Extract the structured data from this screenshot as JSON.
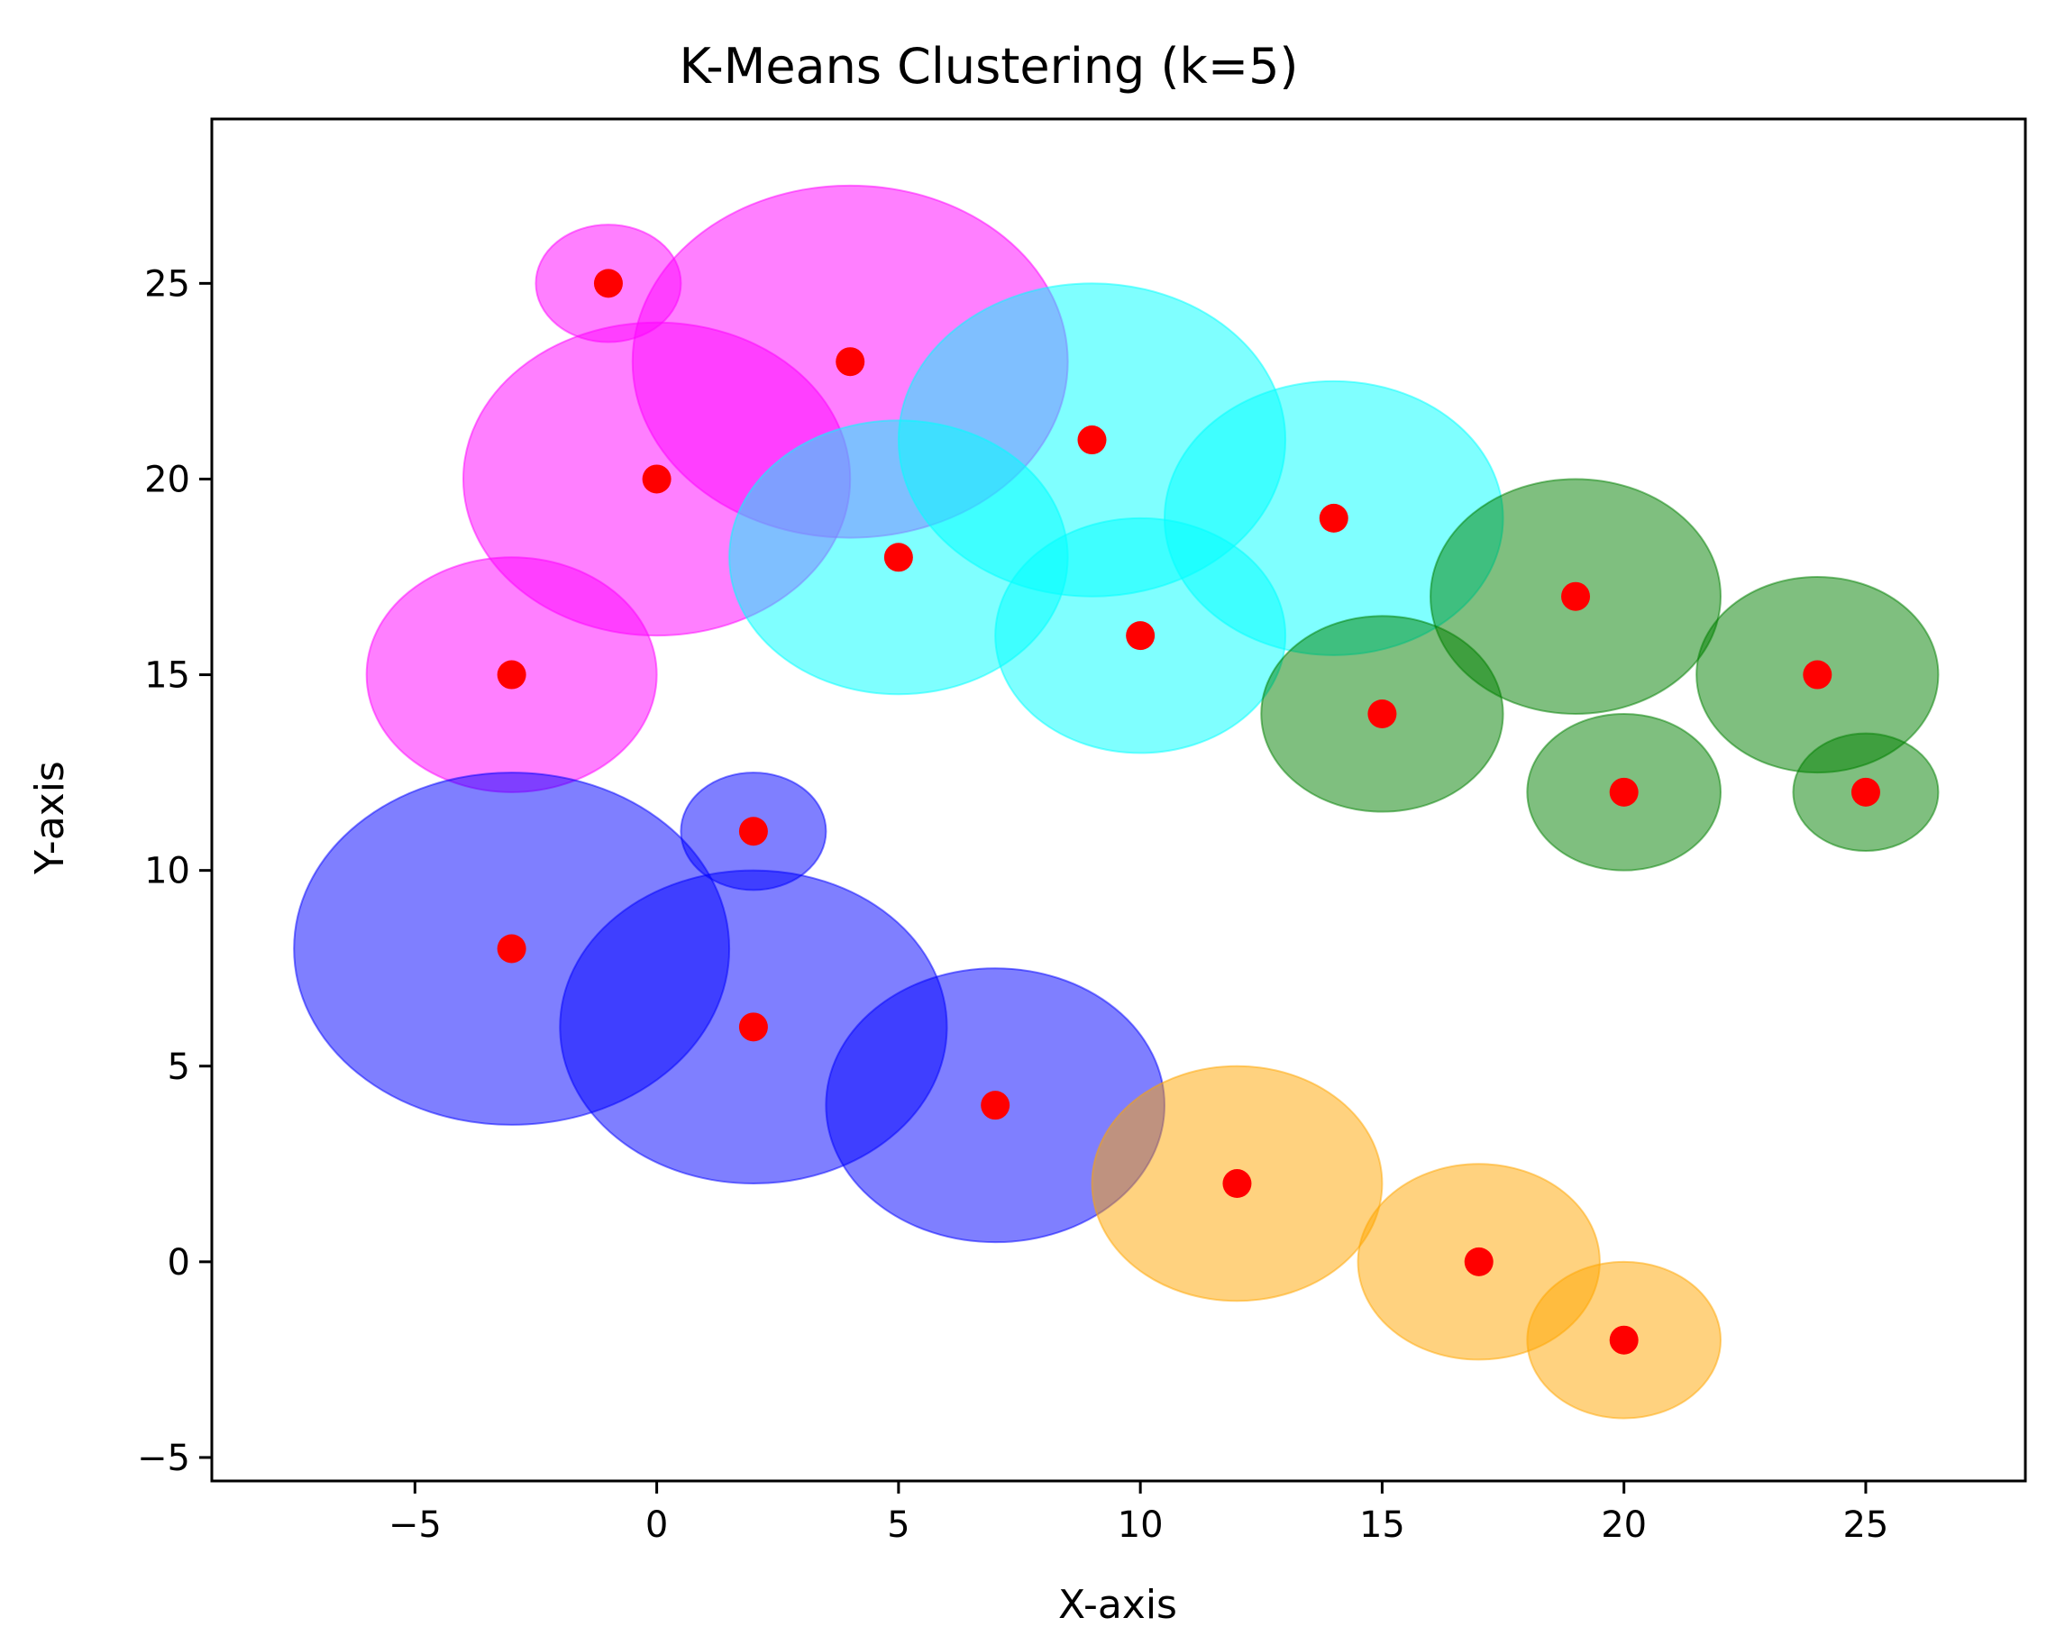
{
  "chart_data": {
    "type": "scatter",
    "title": "K-Means Clustering (k=5)",
    "xlabel": "X-axis",
    "ylabel": "Y-axis",
    "xlim": [
      -9.2,
      28.3
    ],
    "ylim": [
      -5.6,
      29.2
    ],
    "xticks": [
      -5,
      0,
      5,
      10,
      15,
      20,
      25
    ],
    "yticks": [
      -5,
      0,
      5,
      10,
      15,
      20,
      25
    ],
    "xtick_labels": [
      "−5",
      "0",
      "5",
      "10",
      "15",
      "20",
      "25"
    ],
    "ytick_labels": [
      "−5",
      "0",
      "5",
      "10",
      "15",
      "20",
      "25"
    ],
    "grid": false,
    "point_color": "#ff0000",
    "series": [
      {
        "name": "cluster-magenta",
        "color": "#ff00ff",
        "points": [
          {
            "x": -1,
            "y": 25,
            "w": 3.0,
            "h": 3.0
          },
          {
            "x": 4,
            "y": 23,
            "w": 9.0,
            "h": 9.0
          },
          {
            "x": 0,
            "y": 20,
            "w": 8.0,
            "h": 8.0
          },
          {
            "x": -3,
            "y": 15,
            "w": 6.0,
            "h": 6.0
          }
        ]
      },
      {
        "name": "cluster-cyan",
        "color": "#00ffff",
        "points": [
          {
            "x": 9,
            "y": 21,
            "w": 8.0,
            "h": 8.0
          },
          {
            "x": 14,
            "y": 19,
            "w": 7.0,
            "h": 7.0
          },
          {
            "x": 5,
            "y": 18,
            "w": 7.0,
            "h": 7.0
          },
          {
            "x": 10,
            "y": 16,
            "w": 6.0,
            "h": 6.0
          }
        ]
      },
      {
        "name": "cluster-green",
        "color": "#008000",
        "points": [
          {
            "x": 19,
            "y": 17,
            "w": 6.0,
            "h": 6.0
          },
          {
            "x": 24,
            "y": 15,
            "w": 5.0,
            "h": 5.0
          },
          {
            "x": 15,
            "y": 14,
            "w": 5.0,
            "h": 5.0
          },
          {
            "x": 20,
            "y": 12,
            "w": 4.0,
            "h": 4.0
          },
          {
            "x": 25,
            "y": 12,
            "w": 3.0,
            "h": 3.0
          }
        ]
      },
      {
        "name": "cluster-blue",
        "color": "#0000ff",
        "points": [
          {
            "x": 2,
            "y": 11,
            "w": 3.0,
            "h": 3.0
          },
          {
            "x": -3,
            "y": 8,
            "w": 9.0,
            "h": 9.0
          },
          {
            "x": 2,
            "y": 6,
            "w": 8.0,
            "h": 8.0
          },
          {
            "x": 7,
            "y": 4,
            "w": 7.0,
            "h": 7.0
          }
        ]
      },
      {
        "name": "cluster-orange",
        "color": "#ffa500",
        "points": [
          {
            "x": 12,
            "y": 2,
            "w": 6.0,
            "h": 6.0
          },
          {
            "x": 17,
            "y": 0,
            "w": 5.0,
            "h": 5.0
          },
          {
            "x": 20,
            "y": -2,
            "w": 4.0,
            "h": 4.0
          }
        ]
      }
    ]
  }
}
